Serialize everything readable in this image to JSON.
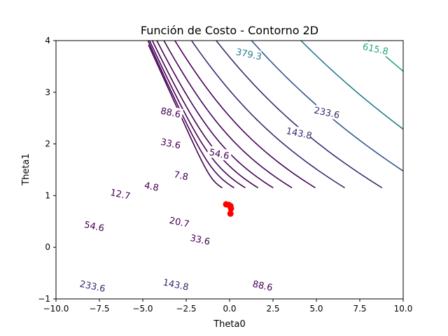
{
  "chart_data": {
    "type": "contour",
    "title": "Función de Costo - Contorno 2D",
    "xlabel": "Theta0",
    "ylabel": "Theta1",
    "xlim": [
      -10,
      10
    ],
    "ylim": [
      -1,
      4
    ],
    "x_ticks": [
      "−10.0",
      "−7.5",
      "−5.0",
      "−2.5",
      "0.0",
      "2.5",
      "5.0",
      "7.5",
      "10.0"
    ],
    "y_ticks": [
      "−1",
      "0",
      "1",
      "2",
      "3",
      "4"
    ],
    "grid": false,
    "colormap": "viridis",
    "level_labels": [
      "4.8",
      "7.8",
      "12.7",
      "20.7",
      "33.6",
      "54.6",
      "88.6",
      "143.8",
      "233.6",
      "379.3",
      "615.8"
    ],
    "colors": {
      "dark_purple": "#440154",
      "purple": "#3b2a6f",
      "blue": "#31578c",
      "teal": "#277a8e",
      "green": "#22a884",
      "path": "#ff0000"
    },
    "gradient_path": {
      "x": [
        -0.2,
        -0.05,
        0.05,
        0.08,
        0.05
      ],
      "y": [
        0.83,
        0.82,
        0.8,
        0.75,
        0.65
      ]
    }
  }
}
